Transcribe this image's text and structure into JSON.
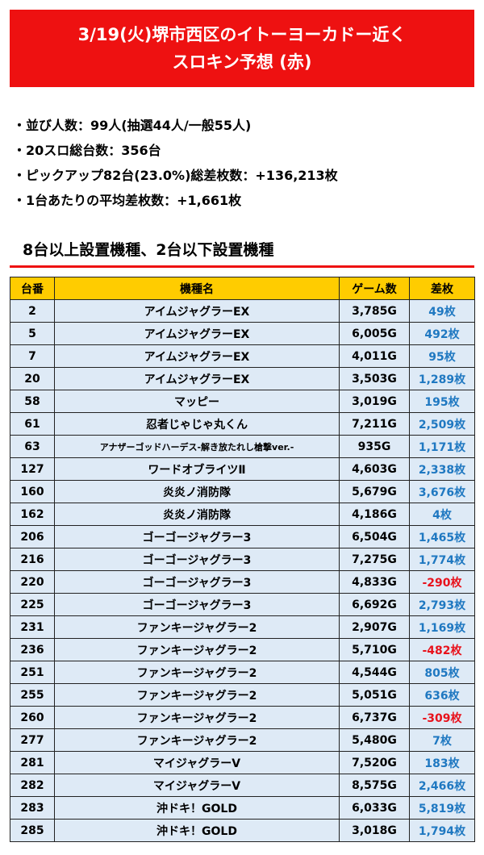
{
  "banner": {
    "line1": "3/19(火)堺市西区のイトーヨーカドー近く",
    "line2": "スロキン予想 (赤)"
  },
  "stats": [
    "・並び人数：99人(抽選44人/一般55人)",
    "・20スロ総台数：356台",
    "・ピックアップ82台(23.0%)総差枚数：+136,213枚",
    "・1台あたりの平均差枚数：+1,661枚"
  ],
  "section_title": "8台以上設置機種、2台以下設置機種",
  "table": {
    "headers": [
      "台番",
      "機種名",
      "ゲーム数",
      "差枚"
    ],
    "colors": {
      "header_bg": "#ffcc00",
      "row_bg": "#deeaf6",
      "positive": "#1f78c1",
      "negative": "#e8121c",
      "accent": "#ee1111"
    },
    "rows": [
      {
        "num": "2",
        "name": "アイムジャグラーEX",
        "games": "3,785G",
        "diff": "49枚"
      },
      {
        "num": "5",
        "name": "アイムジャグラーEX",
        "games": "6,005G",
        "diff": "492枚"
      },
      {
        "num": "7",
        "name": "アイムジャグラーEX",
        "games": "4,011G",
        "diff": "95枚"
      },
      {
        "num": "20",
        "name": "アイムジャグラーEX",
        "games": "3,503G",
        "diff": "1,289枚"
      },
      {
        "num": "58",
        "name": "マッピー",
        "games": "3,019G",
        "diff": "195枚"
      },
      {
        "num": "61",
        "name": "忍者じゃじゃ丸くん",
        "games": "7,211G",
        "diff": "2,509枚"
      },
      {
        "num": "63",
        "name": "アナザーゴッドハーデス-解き放たれし槍撃ver.-",
        "games": "935G",
        "diff": "1,171枚"
      },
      {
        "num": "127",
        "name": "ワードオブライツⅡ",
        "games": "4,603G",
        "diff": "2,338枚"
      },
      {
        "num": "160",
        "name": "炎炎ノ消防隊",
        "games": "5,679G",
        "diff": "3,676枚"
      },
      {
        "num": "162",
        "name": "炎炎ノ消防隊",
        "games": "4,186G",
        "diff": "4枚"
      },
      {
        "num": "206",
        "name": "ゴーゴージャグラー3",
        "games": "6,504G",
        "diff": "1,465枚"
      },
      {
        "num": "216",
        "name": "ゴーゴージャグラー3",
        "games": "7,275G",
        "diff": "1,774枚"
      },
      {
        "num": "220",
        "name": "ゴーゴージャグラー3",
        "games": "4,833G",
        "diff": "-290枚"
      },
      {
        "num": "225",
        "name": "ゴーゴージャグラー3",
        "games": "6,692G",
        "diff": "2,793枚"
      },
      {
        "num": "231",
        "name": "ファンキージャグラー2",
        "games": "2,907G",
        "diff": "1,169枚"
      },
      {
        "num": "236",
        "name": "ファンキージャグラー2",
        "games": "5,710G",
        "diff": "-482枚"
      },
      {
        "num": "251",
        "name": "ファンキージャグラー2",
        "games": "4,544G",
        "diff": "805枚"
      },
      {
        "num": "255",
        "name": "ファンキージャグラー2",
        "games": "5,051G",
        "diff": "636枚"
      },
      {
        "num": "260",
        "name": "ファンキージャグラー2",
        "games": "6,737G",
        "diff": "-309枚"
      },
      {
        "num": "277",
        "name": "ファンキージャグラー2",
        "games": "5,480G",
        "diff": "7枚"
      },
      {
        "num": "281",
        "name": "マイジャグラーV",
        "games": "7,520G",
        "diff": "183枚"
      },
      {
        "num": "282",
        "name": "マイジャグラーV",
        "games": "8,575G",
        "diff": "2,466枚"
      },
      {
        "num": "283",
        "name": "沖ドキ！GOLD",
        "games": "6,033G",
        "diff": "5,819枚"
      },
      {
        "num": "285",
        "name": "沖ドキ！GOLD",
        "games": "3,018G",
        "diff": "1,794枚"
      }
    ]
  }
}
